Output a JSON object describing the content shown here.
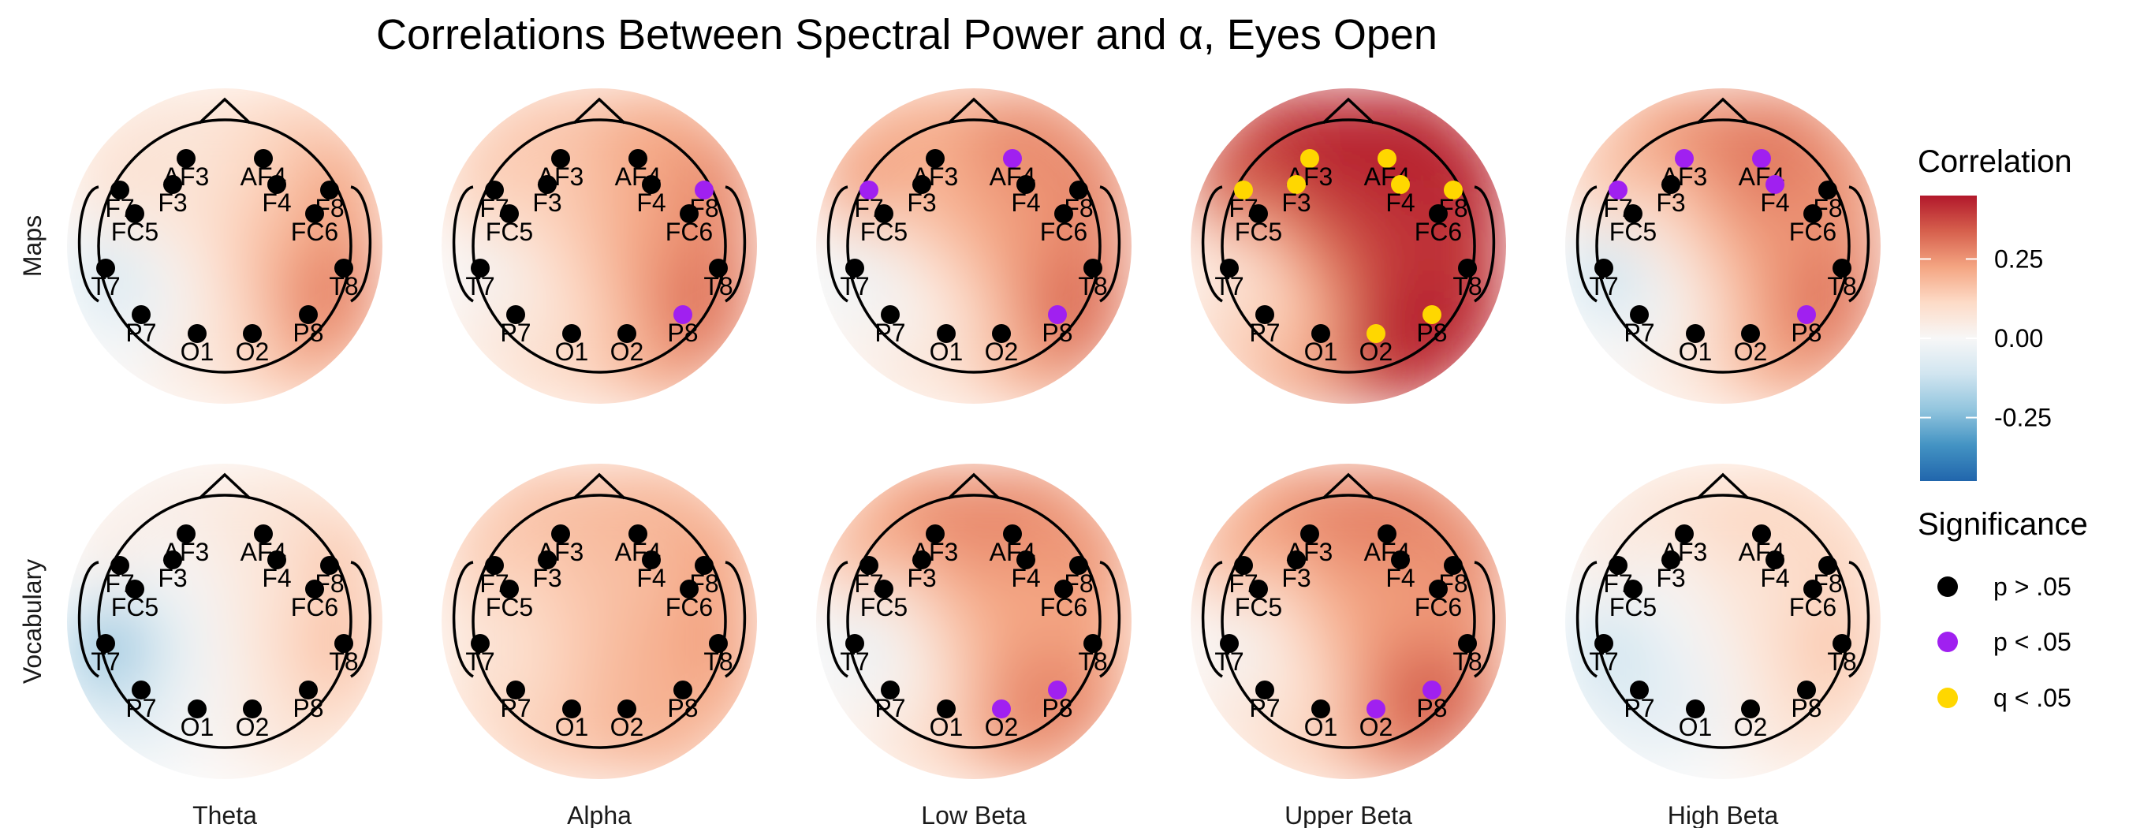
{
  "chart_data": {
    "type": "heatmap",
    "title": "Correlations Between Spectral Power and α, Eyes Open",
    "row_labels": [
      "Maps",
      "Vocabulary"
    ],
    "column_labels": [
      "Theta",
      "Alpha",
      "Low Beta",
      "Upper Beta",
      "High Beta"
    ],
    "electrodes": [
      "AF3",
      "AF4",
      "F7",
      "F8",
      "F3",
      "F4",
      "FC5",
      "FC6",
      "T7",
      "T8",
      "P7",
      "P8",
      "O1",
      "O2"
    ],
    "colorbar": {
      "title": "Correlation",
      "ticks": [
        "0.25",
        "0.00",
        "-0.25"
      ],
      "range": [
        -0.45,
        0.45
      ],
      "colors": [
        "#2166ac",
        "#4393c3",
        "#92c5de",
        "#d1e5f0",
        "#f7f7f7",
        "#fddbc7",
        "#f4a582",
        "#d6604d",
        "#b2182b"
      ]
    },
    "significance_legend": {
      "title": "Significance",
      "items": [
        {
          "label": "p > .05",
          "color": "#000000"
        },
        {
          "label": "p < .05",
          "color": "#a020f0"
        },
        {
          "label": "q < .05",
          "color": "#ffd700"
        }
      ]
    },
    "panels": [
      {
        "row": "Maps",
        "band": "Theta",
        "values": {
          "AF3": 0.05,
          "AF4": 0.1,
          "F7": 0.1,
          "F8": 0.25,
          "F3": 0.1,
          "F4": 0.15,
          "FC5": 0.05,
          "FC6": 0.2,
          "T7": -0.15,
          "T8": 0.3,
          "P7": -0.05,
          "P8": 0.3,
          "O1": 0.05,
          "O2": 0.12
        },
        "significant_p": [],
        "significant_q": []
      },
      {
        "row": "Maps",
        "band": "Alpha",
        "values": {
          "AF3": 0.15,
          "AF4": 0.22,
          "F7": 0.15,
          "F8": 0.3,
          "F3": 0.15,
          "F4": 0.2,
          "FC5": 0.1,
          "FC6": 0.25,
          "T7": -0.05,
          "T8": 0.3,
          "P7": 0.05,
          "P8": 0.33,
          "O1": 0.1,
          "O2": 0.18
        },
        "significant_p": [
          "F8",
          "P8"
        ],
        "significant_q": []
      },
      {
        "row": "Maps",
        "band": "Low Beta",
        "values": {
          "AF3": 0.2,
          "AF4": 0.3,
          "F7": 0.3,
          "F8": 0.3,
          "F3": 0.2,
          "F4": 0.22,
          "FC5": 0.1,
          "FC6": 0.25,
          "T7": -0.1,
          "T8": 0.3,
          "P7": 0.0,
          "P8": 0.35,
          "O1": 0.05,
          "O2": 0.18
        },
        "significant_p": [
          "AF4",
          "F7",
          "P8"
        ],
        "significant_q": []
      },
      {
        "row": "Maps",
        "band": "Upper Beta",
        "values": {
          "AF3": 0.45,
          "AF4": 0.45,
          "F7": 0.4,
          "F8": 0.45,
          "F3": 0.4,
          "F4": 0.42,
          "FC5": 0.2,
          "FC6": 0.4,
          "T7": 0.0,
          "T8": 0.4,
          "P7": 0.1,
          "P8": 0.45,
          "O1": 0.2,
          "O2": 0.45
        },
        "significant_p": [],
        "significant_q": [
          "AF3",
          "AF4",
          "F7",
          "F8",
          "F3",
          "F4",
          "P8",
          "O2"
        ]
      },
      {
        "row": "Maps",
        "band": "High Beta",
        "values": {
          "AF3": 0.3,
          "AF4": 0.32,
          "F7": 0.2,
          "F8": 0.28,
          "F3": 0.15,
          "F4": 0.3,
          "FC5": 0.05,
          "FC6": 0.22,
          "T7": -0.2,
          "T8": 0.3,
          "P7": -0.05,
          "P8": 0.32,
          "O1": 0.05,
          "O2": 0.2
        },
        "significant_p": [
          "AF3",
          "AF4",
          "F7",
          "F4",
          "P8"
        ],
        "significant_q": []
      },
      {
        "row": "Vocabulary",
        "band": "Theta",
        "values": {
          "AF3": 0.05,
          "AF4": 0.08,
          "F7": 0.1,
          "F8": 0.2,
          "F3": 0.0,
          "F4": 0.05,
          "FC5": -0.1,
          "FC6": 0.1,
          "T7": -0.3,
          "T8": 0.2,
          "P7": -0.1,
          "P8": 0.12,
          "O1": 0.0,
          "O2": 0.05
        },
        "significant_p": [],
        "significant_q": []
      },
      {
        "row": "Vocabulary",
        "band": "Alpha",
        "values": {
          "AF3": 0.18,
          "AF4": 0.2,
          "F7": 0.15,
          "F8": 0.25,
          "F3": 0.15,
          "F4": 0.15,
          "FC5": 0.1,
          "FC6": 0.2,
          "T7": 0.05,
          "T8": 0.25,
          "P7": 0.1,
          "P8": 0.2,
          "O1": 0.15,
          "O2": 0.2
        },
        "significant_p": [],
        "significant_q": []
      },
      {
        "row": "Vocabulary",
        "band": "Low Beta",
        "values": {
          "AF3": 0.3,
          "AF4": 0.3,
          "F7": 0.25,
          "F8": 0.28,
          "F3": 0.2,
          "F4": 0.22,
          "FC5": 0.0,
          "FC6": 0.2,
          "T7": -0.1,
          "T8": 0.22,
          "P7": 0.0,
          "P8": 0.3,
          "O1": 0.1,
          "O2": 0.28
        },
        "significant_p": [
          "O2",
          "P8"
        ],
        "significant_q": []
      },
      {
        "row": "Vocabulary",
        "band": "Upper Beta",
        "values": {
          "AF3": 0.3,
          "AF4": 0.32,
          "F7": 0.25,
          "F8": 0.3,
          "F3": 0.2,
          "F4": 0.22,
          "FC5": 0.05,
          "FC6": 0.22,
          "T7": -0.05,
          "T8": 0.25,
          "P7": 0.05,
          "P8": 0.38,
          "O1": 0.1,
          "O2": 0.3
        },
        "significant_p": [
          "O2",
          "P8"
        ],
        "significant_q": []
      },
      {
        "row": "Vocabulary",
        "band": "High Beta",
        "values": {
          "AF3": 0.12,
          "AF4": 0.15,
          "F7": 0.1,
          "F8": 0.15,
          "F3": 0.0,
          "F4": 0.05,
          "FC5": -0.05,
          "FC6": 0.1,
          "T7": -0.15,
          "T8": 0.18,
          "P7": -0.08,
          "P8": 0.12,
          "O1": -0.05,
          "O2": 0.05
        },
        "significant_p": [],
        "significant_q": []
      }
    ]
  }
}
